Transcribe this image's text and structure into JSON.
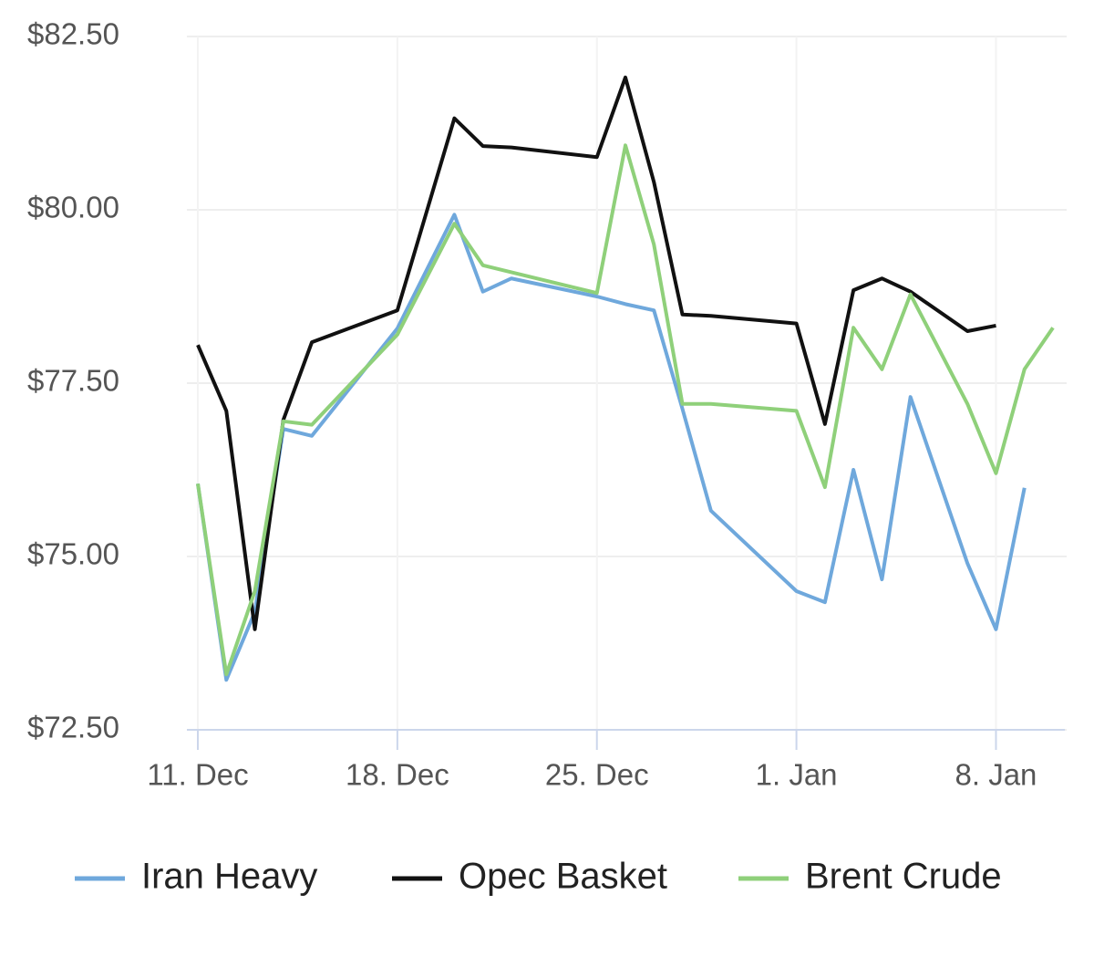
{
  "chart_data": {
    "type": "line",
    "x": [
      "11. Dec",
      "12. Dec",
      "13. Dec",
      "14. Dec",
      "15. Dec",
      "18. Dec",
      "20. Dec",
      "21. Dec",
      "22. Dec",
      "25. Dec",
      "26. Dec",
      "27. Dec",
      "28. Dec",
      "29. Dec",
      "1. Jan",
      "2. Jan",
      "3. Jan",
      "4. Jan",
      "5. Jan",
      "7. Jan",
      "8. Jan",
      "9. Jan",
      "10. Jan"
    ],
    "series": [
      {
        "name": "Iran Heavy",
        "color": "#6fa8dc",
        "values": [
          76.05,
          73.22,
          74.2,
          76.84,
          76.74,
          78.29,
          79.93,
          78.82,
          79.01,
          78.75,
          78.64,
          78.55,
          77.13,
          75.66,
          74.5,
          74.34,
          76.25,
          74.67,
          77.3,
          74.9,
          73.95,
          75.99,
          null
        ]
      },
      {
        "name": "Opec Basket",
        "color": "#111111",
        "values": [
          78.05,
          77.1,
          73.95,
          76.97,
          78.09,
          78.55,
          81.32,
          80.92,
          80.9,
          80.76,
          81.91,
          80.4,
          78.49,
          78.47,
          78.36,
          76.91,
          78.84,
          79.01,
          78.82,
          78.25,
          78.33,
          null,
          null
        ]
      },
      {
        "name": "Brent Crude",
        "color": "#8fd07a",
        "values": [
          76.05,
          73.3,
          74.5,
          76.95,
          76.9,
          78.2,
          79.8,
          79.2,
          79.1,
          78.8,
          80.93,
          79.5,
          77.2,
          77.2,
          77.1,
          76.0,
          78.3,
          77.7,
          78.78,
          77.2,
          76.2,
          77.7,
          78.3
        ]
      }
    ],
    "xlim": [
      "11. Dec",
      "10. Jan"
    ],
    "xticks": [
      "11. Dec",
      "18. Dec",
      "25. Dec",
      "1. Jan",
      "8. Jan"
    ],
    "ylim": [
      72.5,
      82.5
    ],
    "yticks": [
      {
        "value": 72.5,
        "label": "$72.50"
      },
      {
        "value": 75,
        "label": "$75.00"
      },
      {
        "value": 77.5,
        "label": "$77.50"
      },
      {
        "value": 80,
        "label": "$80.00"
      },
      {
        "value": 82.5,
        "label": "$82.50"
      }
    ],
    "grid": true,
    "legend": "bottom"
  }
}
